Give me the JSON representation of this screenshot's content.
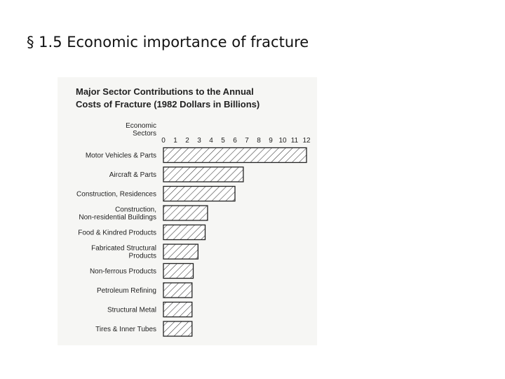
{
  "slide": {
    "title": "§ 1.5 Economic importance of fracture"
  },
  "chart_data": {
    "type": "bar",
    "orientation": "horizontal",
    "title_lines": [
      "Major Sector Contributions to the Annual",
      "Costs of Fracture (1982 Dollars in Billions)"
    ],
    "category_axis_label": [
      "Economic",
      "Sectors"
    ],
    "ticks": [
      0,
      1,
      2,
      3,
      4,
      5,
      6,
      7,
      8,
      9,
      10,
      11,
      12
    ],
    "xlim": [
      0,
      12
    ],
    "categories": [
      [
        "Motor Vehicles & Parts"
      ],
      [
        "Aircraft & Parts"
      ],
      [
        "Construction, Residences"
      ],
      [
        "Construction,",
        "Non-residential Buildings"
      ],
      [
        "Food & Kindred Products"
      ],
      [
        "Fabricated Structural",
        "Products"
      ],
      [
        "Non-ferrous Products"
      ],
      [
        "Petroleum Refining"
      ],
      [
        "Structural Metal"
      ],
      [
        "Tires & Inner Tubes"
      ]
    ],
    "values": [
      12.0,
      6.7,
      6.0,
      3.7,
      3.5,
      2.9,
      2.5,
      2.4,
      2.4,
      2.4
    ],
    "bar_fill": "hatched",
    "grid": false,
    "legend": "none"
  }
}
